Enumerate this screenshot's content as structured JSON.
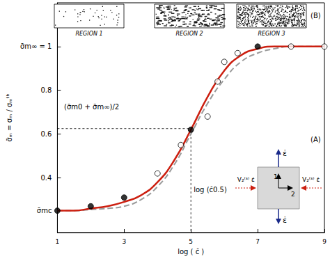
{
  "chart_data": {
    "type": "line",
    "x_label": "log ( ĉ )",
    "y_label": "σ̄ₘ = σₘ / σₘᵗʰ",
    "xlim": [
      1,
      9
    ],
    "xticks": [
      1,
      3,
      5,
      7,
      9
    ],
    "ylim": [
      0.15,
      1.2
    ],
    "yticks": [
      {
        "value": 0.25,
        "label": "σ̄mc"
      },
      0.4,
      0.6,
      0.8,
      {
        "value": 1,
        "label": "σ̄m∞ = 1"
      }
    ],
    "grid": false,
    "series": [
      {
        "type": "line",
        "color": "#cc1f10",
        "line_style": "solid",
        "marker": "none",
        "x": [
          1,
          1.5,
          2,
          2.5,
          3,
          3.5,
          4,
          4.5,
          5,
          5.5,
          6,
          6.5,
          7,
          7.5,
          8,
          8.5,
          9
        ],
        "values": [
          0.25,
          0.25,
          0.26,
          0.27,
          0.29,
          0.32,
          0.38,
          0.48,
          0.62,
          0.77,
          0.89,
          0.96,
          0.99,
          1.0,
          1.0,
          1.0,
          1.0
        ]
      },
      {
        "type": "line",
        "color": "#9a9a9a",
        "line_style": "dashed",
        "marker": "none",
        "x": [
          1,
          1.5,
          2,
          2.5,
          3,
          3.5,
          4,
          4.5,
          5,
          5.5,
          6,
          6.5,
          7,
          7.5,
          8,
          8.5,
          9
        ],
        "values": [
          0.25,
          0.25,
          0.255,
          0.26,
          0.27,
          0.3,
          0.36,
          0.46,
          0.6,
          0.74,
          0.85,
          0.93,
          0.97,
          0.99,
          1.0,
          1.0,
          1.0
        ]
      },
      {
        "type": "scatter",
        "color": "#000000",
        "marker": "circle-filled",
        "x": [
          1,
          2,
          3,
          5,
          7
        ],
        "values": [
          0.25,
          0.27,
          0.31,
          0.62,
          1.0
        ]
      },
      {
        "type": "scatter",
        "color": "#000000",
        "marker": "circle-open",
        "x": [
          4,
          4.7,
          5.5,
          5.8,
          6,
          6.4,
          8,
          9
        ],
        "values": [
          0.42,
          0.55,
          0.68,
          0.84,
          0.93,
          0.97,
          1.0,
          1.0
        ]
      }
    ],
    "reference": {
      "x": 5,
      "y": 0.625,
      "x_label": "log (ĉ0.5)",
      "y_label": "(σ̄m0 + σ̄m∞)/2"
    },
    "panel_labels": [
      "(A)",
      "(B)"
    ],
    "regions": [
      "REGION 1",
      "REGION 2",
      "REGION 3"
    ],
    "inset": {
      "load": "ε̇",
      "axis_1": "1",
      "axis_2": "2",
      "lateral": "V₂⁽ˢ⁾ ε̇"
    }
  }
}
